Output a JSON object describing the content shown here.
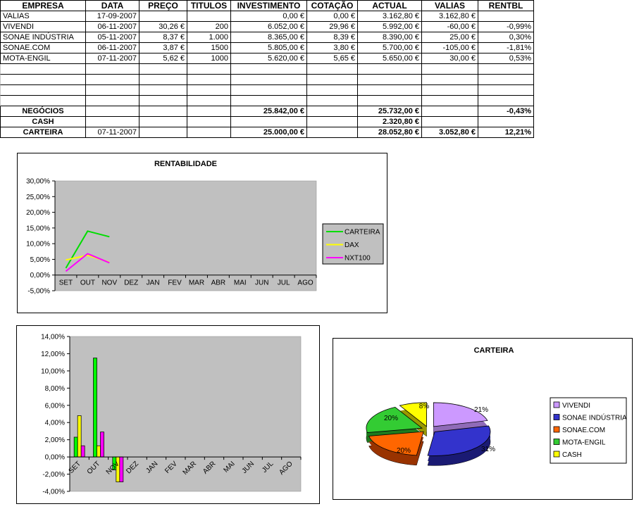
{
  "colors": {
    "highlight": "#00CCFF",
    "plot_background": "#C0C0C0",
    "grid_light": "#C9C9C9"
  },
  "table": {
    "headers": [
      "EMPRESA",
      "DATA",
      "PREÇO",
      "TITULOS",
      "INVESTIMENTO",
      "COTAÇÃO",
      "ACTUAL",
      "VALIAS",
      "RENTBL"
    ],
    "rows": [
      [
        "VALIAS",
        "17-09-2007",
        "",
        "",
        "0,00 €",
        "0,00 €",
        "3.162,80 €",
        "3.162,80 €",
        ""
      ],
      [
        "VIVENDI",
        "06-11-2007",
        "30,26 €",
        "200",
        "6.052,00 €",
        "29,96 €",
        "5.992,00 €",
        "-60,00 €",
        "-0,99%"
      ],
      [
        "SONAE INDÚSTRIA",
        "05-11-2007",
        "8,37 €",
        "1.000",
        "8.365,00 €",
        "8,39 €",
        "8.390,00 €",
        "25,00 €",
        "0,30%"
      ],
      [
        "SONAE.COM",
        "06-11-2007",
        "3,87 €",
        "1500",
        "5.805,00 €",
        "3,80 €",
        "5.700,00 €",
        "-105,00 €",
        "-1,81%"
      ],
      [
        "MOTA-ENGIL",
        "07-11-2007",
        "5,62 €",
        "1000",
        "5.620,00 €",
        "5,65 €",
        "5.650,00 €",
        "30,00 €",
        "0,53%"
      ]
    ],
    "empty_row_count": 4,
    "summary_rows": [
      {
        "label": "NEGÓCIOS",
        "date": "",
        "investimento": "25.842,00 €",
        "cotacao": "",
        "actual": "25.732,00 €",
        "valias": "",
        "rentbl": "-0,43%"
      },
      {
        "label": "CASH",
        "date": "",
        "investimento": "",
        "cotacao": "",
        "actual": "2.320,80 €",
        "valias": "",
        "rentbl": ""
      },
      {
        "label": "CARTEIRA",
        "date": "07-11-2007",
        "investimento": "25.000,00 €",
        "cotacao": "",
        "actual": "28.052,80 €",
        "valias": "3.052,80 €",
        "rentbl": "12,21%"
      }
    ]
  },
  "chart_data": [
    {
      "type": "line",
      "title": "RENTABILIDADE",
      "categories": [
        "SET",
        "OUT",
        "NOV",
        "DEZ",
        "JAN",
        "FEV",
        "MAR",
        "ABR",
        "MAI",
        "JUN",
        "JUL",
        "AGO"
      ],
      "series": [
        {
          "name": "CARTEIRA",
          "color": "#00DD00",
          "values": [
            2.2,
            14.0,
            12.2
          ]
        },
        {
          "name": "DAX",
          "color": "#FFFF00",
          "values": [
            4.8,
            6.3,
            4.1
          ]
        },
        {
          "name": "NXT100",
          "color": "#FF00FF",
          "values": [
            1.2,
            6.8,
            3.9
          ]
        }
      ],
      "ylim": [
        -5,
        30
      ],
      "ytick_labels": [
        "30,00%",
        "25,00%",
        "20,00%",
        "15,00%",
        "10,00%",
        "5,00%",
        "0,00%",
        "-5,00%"
      ],
      "grid": false,
      "legend_position": "right"
    },
    {
      "type": "bar",
      "title": "",
      "categories": [
        "SET",
        "OUT",
        "NOV",
        "DEZ",
        "JAN",
        "FEV",
        "MAR",
        "ABR",
        "MAI",
        "JUN",
        "JUL",
        "AGO"
      ],
      "series": [
        {
          "name": "CARTEIRA",
          "color": "#00FF00",
          "values": [
            2.3,
            11.5,
            -1.5
          ]
        },
        {
          "name": "DAX",
          "color": "#FFFF00",
          "values": [
            4.8,
            1.3,
            -2.9
          ]
        },
        {
          "name": "NXT100",
          "color": "#FF00FF",
          "values": [
            1.3,
            2.9,
            -2.9
          ]
        }
      ],
      "ylim": [
        -4,
        14
      ],
      "ytick_labels": [
        "14,00%",
        "12,00%",
        "10,00%",
        "8,00%",
        "6,00%",
        "4,00%",
        "2,00%",
        "0,00%",
        "-2,00%",
        "-4,00%"
      ],
      "grid": false,
      "legend_position": "none"
    },
    {
      "type": "pie",
      "title": "CARTEIRA",
      "slices": [
        {
          "label": "VIVENDI",
          "pct": 21,
          "pct_label": "21%",
          "color": "#CC99FF",
          "dark": "#8F6BB8"
        },
        {
          "label": "SONAE INDÚSTRIA",
          "pct": 31,
          "pct_label": "31%",
          "color": "#3333CC",
          "dark": "#1A1A73"
        },
        {
          "label": "SONAE.COM",
          "pct": 20,
          "pct_label": "20%",
          "color": "#FF6600",
          "dark": "#993300"
        },
        {
          "label": "MOTA-ENGIL",
          "pct": 20,
          "pct_label": "20%",
          "color": "#33CC33",
          "dark": "#1E7A1E"
        },
        {
          "label": "CASH",
          "pct": 8,
          "pct_label": "8%",
          "color": "#FFFF00",
          "dark": "#999900"
        }
      ],
      "legend_position": "right"
    }
  ]
}
